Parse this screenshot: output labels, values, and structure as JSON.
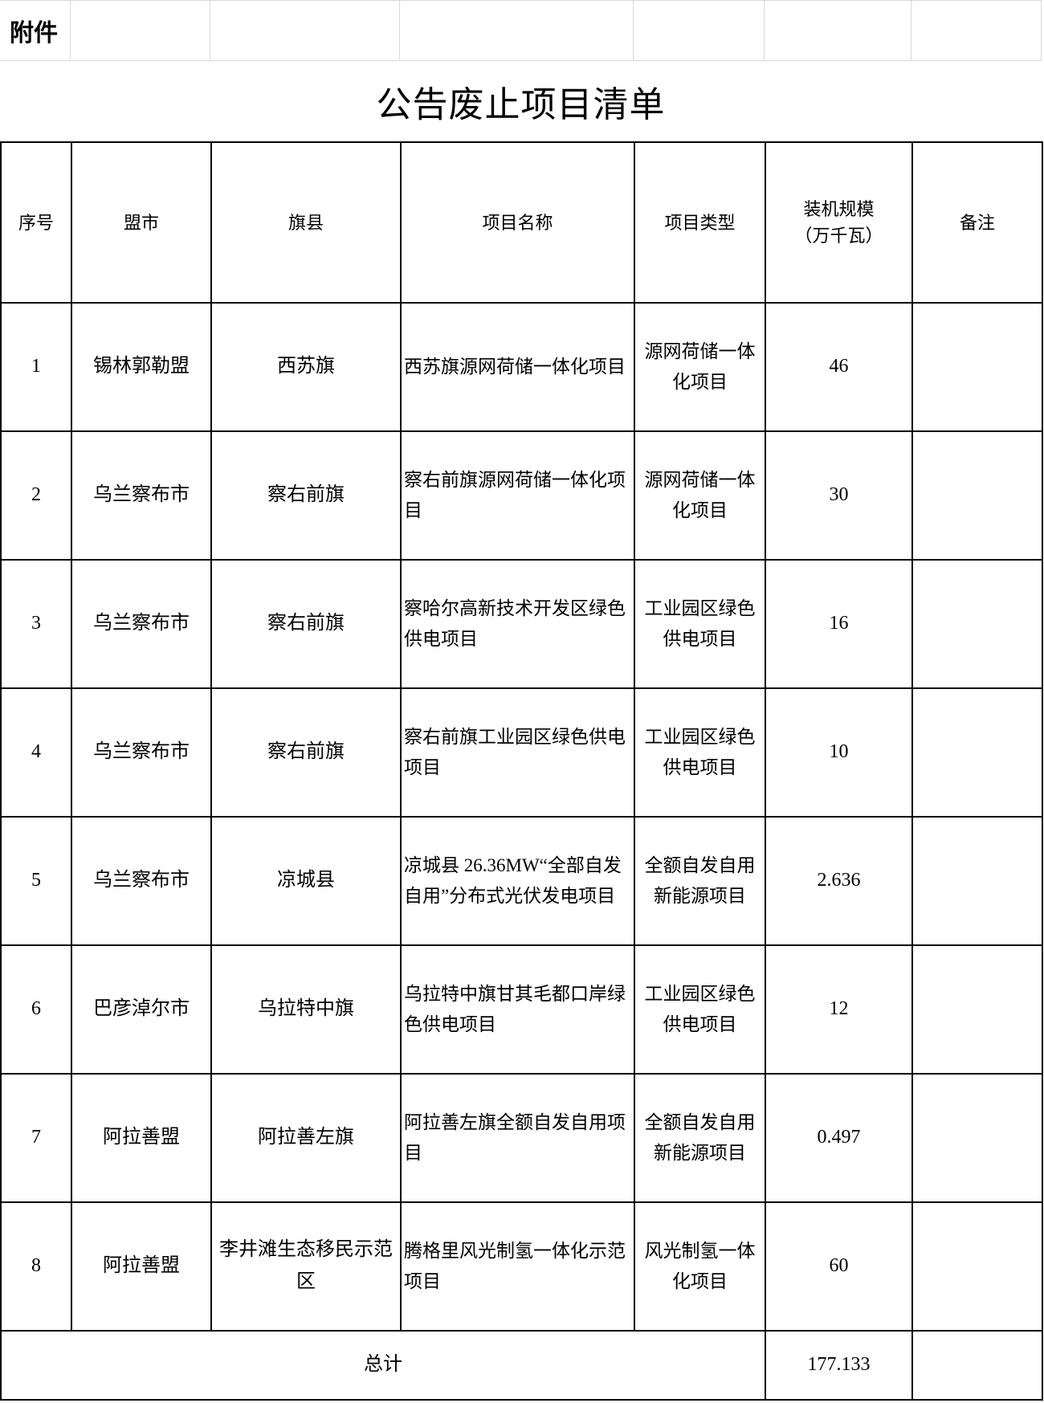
{
  "attachment_label": "附件",
  "title": "公告废止项目清单",
  "colors": {
    "border": "#000000",
    "gridline": "#d9d9d9",
    "background": "#ffffff",
    "text": "#000000"
  },
  "table": {
    "headers": [
      "序号",
      "盟市",
      "旗县",
      "项目名称",
      "项目类型",
      "装机规模\n（万千瓦）",
      "备注"
    ],
    "rows": [
      {
        "no": "1",
        "city": "锡林郭勒盟",
        "county": "西苏旗",
        "name": "西苏旗源网荷储一体化项目",
        "type": "源网荷储一体化项目",
        "capacity": "46",
        "remark": ""
      },
      {
        "no": "2",
        "city": "乌兰察布市",
        "county": "察右前旗",
        "name": "察右前旗源网荷储一体化项目",
        "type": "源网荷储一体化项目",
        "capacity": "30",
        "remark": ""
      },
      {
        "no": "3",
        "city": "乌兰察布市",
        "county": "察右前旗",
        "name": "察哈尔高新技术开发区绿色供电项目",
        "type": "工业园区绿色供电项目",
        "capacity": "16",
        "remark": ""
      },
      {
        "no": "4",
        "city": "乌兰察布市",
        "county": "察右前旗",
        "name": "察右前旗工业园区绿色供电项目",
        "type": "工业园区绿色供电项目",
        "capacity": "10",
        "remark": ""
      },
      {
        "no": "5",
        "city": "乌兰察布市",
        "county": "凉城县",
        "name": "凉城县 26.36MW“全部自发自用”分布式光伏发电项目",
        "type": "全额自发自用新能源项目",
        "capacity": "2.636",
        "remark": ""
      },
      {
        "no": "6",
        "city": "巴彦淖尔市",
        "county": "乌拉特中旗",
        "name": "乌拉特中旗甘其毛都口岸绿色供电项目",
        "type": "工业园区绿色供电项目",
        "capacity": "12",
        "remark": ""
      },
      {
        "no": "7",
        "city": "阿拉善盟",
        "county": "阿拉善左旗",
        "name": "阿拉善左旗全额自发自用项目",
        "type": "全额自发自用新能源项目",
        "capacity": "0.497",
        "remark": ""
      },
      {
        "no": "8",
        "city": "阿拉善盟",
        "county": "李井滩生态移民示范区",
        "name": "腾格里风光制氢一体化示范项目",
        "type": "风光制氢一体化项目",
        "capacity": "60",
        "remark": ""
      }
    ],
    "total_label": "总计",
    "total_capacity": "177.133",
    "total_remark": ""
  }
}
